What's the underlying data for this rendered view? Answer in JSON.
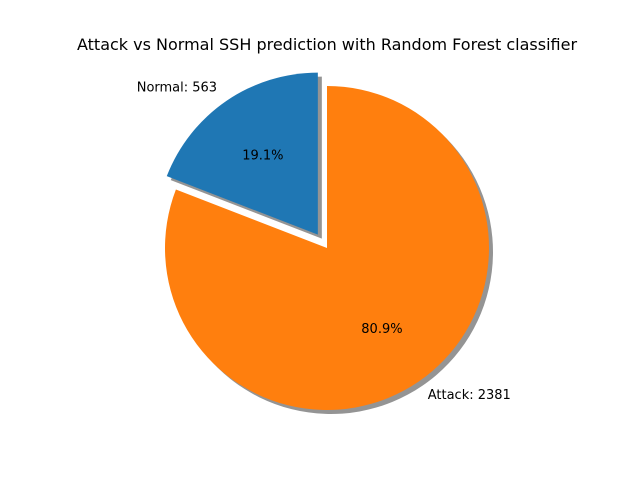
{
  "chart_data": {
    "type": "pie",
    "title": "Attack vs Normal SSH prediction with Random Forest classifier",
    "slices": [
      {
        "label": "Normal: 563",
        "value": 563,
        "percent_label": "19.1%",
        "color": "#1f77b4",
        "exploded": true
      },
      {
        "label": "Attack: 2381",
        "value": 2381,
        "percent_label": "80.9%",
        "color": "#ff7f0e",
        "exploded": false
      }
    ],
    "start_angle_deg": 90,
    "direction": "counterclockwise",
    "shadow": true
  }
}
